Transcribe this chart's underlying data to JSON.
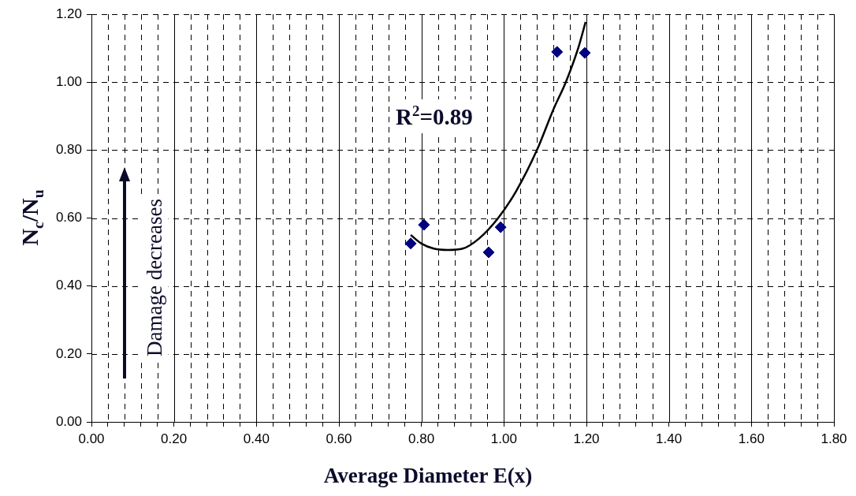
{
  "chart_data": {
    "type": "scatter",
    "xlabel": "Average Diameter E(x)",
    "ylabel": "N$_{c}$/N$_{u}$",
    "xlim": [
      0,
      1.8
    ],
    "ylim": [
      0,
      1.2
    ],
    "xticks": [
      {
        "value": 0,
        "label": "0.00"
      },
      {
        "value": 0.04,
        "label": null
      },
      {
        "value": 0.08,
        "label": null
      },
      {
        "value": 0.12,
        "label": null
      },
      {
        "value": 0.16,
        "label": null
      },
      {
        "value": 0.2,
        "label": "0.20"
      },
      {
        "value": 0.24,
        "label": null
      },
      {
        "value": 0.28,
        "label": null
      },
      {
        "value": 0.32,
        "label": null
      },
      {
        "value": 0.36,
        "label": null
      },
      {
        "value": 0.4,
        "label": "0.40"
      },
      {
        "value": 0.44,
        "label": null
      },
      {
        "value": 0.48,
        "label": null
      },
      {
        "value": 0.52,
        "label": null
      },
      {
        "value": 0.56,
        "label": null
      },
      {
        "value": 0.6,
        "label": "0.60"
      },
      {
        "value": 0.64,
        "label": null
      },
      {
        "value": 0.68,
        "label": null
      },
      {
        "value": 0.72,
        "label": null
      },
      {
        "value": 0.76,
        "label": null
      },
      {
        "value": 0.8,
        "label": "0.80"
      },
      {
        "value": 0.84,
        "label": null
      },
      {
        "value": 0.88,
        "label": null
      },
      {
        "value": 0.92,
        "label": null
      },
      {
        "value": 0.96,
        "label": null
      },
      {
        "value": 1.0,
        "label": "1.00"
      },
      {
        "value": 1.04,
        "label": null
      },
      {
        "value": 1.08,
        "label": null
      },
      {
        "value": 1.12,
        "label": null
      },
      {
        "value": 1.16,
        "label": null
      },
      {
        "value": 1.2,
        "label": "1.20"
      },
      {
        "value": 1.24,
        "label": null
      },
      {
        "value": 1.28,
        "label": null
      },
      {
        "value": 1.32,
        "label": null
      },
      {
        "value": 1.36,
        "label": null
      },
      {
        "value": 1.4,
        "label": "1.40"
      },
      {
        "value": 1.44,
        "label": null
      },
      {
        "value": 1.48,
        "label": null
      },
      {
        "value": 1.52,
        "label": null
      },
      {
        "value": 1.56,
        "label": null
      },
      {
        "value": 1.6,
        "label": "1.60"
      },
      {
        "value": 1.64,
        "label": null
      },
      {
        "value": 1.68,
        "label": null
      },
      {
        "value": 1.72,
        "label": null
      },
      {
        "value": 1.76,
        "label": null
      },
      {
        "value": 1.8,
        "label": "1.80"
      }
    ],
    "yticks": [
      {
        "value": 0,
        "label": "0.00"
      },
      {
        "value": 0.2,
        "label": "0.20"
      },
      {
        "value": 0.4,
        "label": "0.40"
      },
      {
        "value": 0.6,
        "label": "0.60"
      },
      {
        "value": 0.8,
        "label": "0.80"
      },
      {
        "value": 1.0,
        "label": "1.00"
      },
      {
        "value": 1.2,
        "label": "1.20"
      }
    ],
    "grid": true,
    "legend": false,
    "marker": "diamond",
    "series": [
      {
        "color": "#000080",
        "x": [
          0.774,
          0.806,
          0.963,
          0.992,
          1.129,
          1.196
        ],
        "values": [
          0.525,
          0.58,
          0.499,
          0.573,
          1.089,
          1.086
        ]
      },
      {
        "type": "line",
        "color": "#000000",
        "marker": "none",
        "line_style": "solid",
        "x": [
          0.774,
          0.8,
          0.83,
          0.864,
          0.9,
          0.94,
          0.986,
          1.03,
          1.08,
          1.12,
          1.15,
          1.18,
          1.198
        ],
        "values": [
          0.55,
          0.525,
          0.51,
          0.506,
          0.51,
          0.54,
          0.6,
          0.68,
          0.8,
          0.92,
          1.0,
          1.1,
          1.177
        ]
      }
    ],
    "annotations": [
      "R$^{2}$=0.89",
      "Damage decreases"
    ]
  }
}
